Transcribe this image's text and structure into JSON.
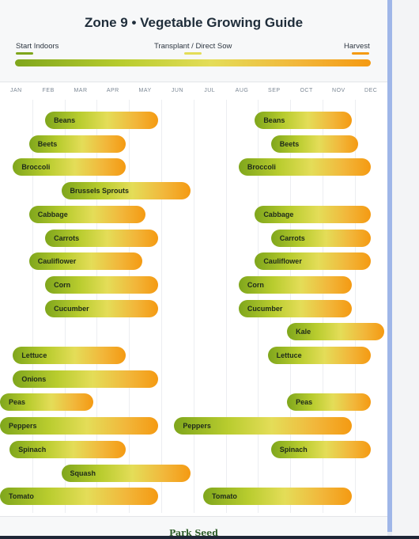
{
  "chart_data": {
    "type": "gantt",
    "title": "Zone 9 • Vegetable Growing Guide",
    "legend": [
      {
        "label": "Start Indoors",
        "color": "#7fa61c"
      },
      {
        "label": "Transplant / Direct Sow",
        "color": "#e4dd58"
      },
      {
        "label": "Harvest",
        "color": "#f49a12"
      }
    ],
    "months": [
      "JAN",
      "FEB",
      "MAR",
      "APR",
      "MAY",
      "JUN",
      "JUL",
      "AUG",
      "SEP",
      "OCT",
      "NOV",
      "DEC"
    ],
    "x_range_months": [
      0,
      12
    ],
    "series": [
      {
        "name": "Beans",
        "bars": [
          [
            1.4,
            4.9
          ],
          [
            7.9,
            10.9
          ]
        ]
      },
      {
        "name": "Beets",
        "bars": [
          [
            0.9,
            3.9
          ],
          [
            8.4,
            11.1
          ]
        ]
      },
      {
        "name": "Broccoli",
        "bars": [
          [
            0.4,
            3.9
          ],
          [
            7.4,
            11.5
          ]
        ]
      },
      {
        "name": "Brussels Sprouts",
        "bars": [
          [
            1.9,
            5.9
          ]
        ]
      },
      {
        "name": "Cabbage",
        "bars": [
          [
            0.9,
            4.5
          ],
          [
            7.9,
            11.5
          ]
        ]
      },
      {
        "name": "Carrots",
        "bars": [
          [
            1.4,
            4.9
          ],
          [
            8.4,
            11.5
          ]
        ]
      },
      {
        "name": "Cauliflower",
        "bars": [
          [
            0.9,
            4.4
          ],
          [
            7.9,
            11.5
          ]
        ]
      },
      {
        "name": "Corn",
        "bars": [
          [
            1.4,
            4.9
          ],
          [
            7.4,
            10.9
          ]
        ]
      },
      {
        "name": "Cucumber",
        "bars": [
          [
            1.4,
            4.9
          ],
          [
            7.4,
            10.9
          ]
        ]
      },
      {
        "name": "Kale",
        "bars": [
          [
            8.9,
            11.9
          ]
        ]
      },
      {
        "name": "Lettuce",
        "bars": [
          [
            0.4,
            3.9
          ],
          [
            8.3,
            11.5
          ]
        ]
      },
      {
        "name": "Onions",
        "bars": [
          [
            0.4,
            4.9
          ]
        ]
      },
      {
        "name": "Peas",
        "bars": [
          [
            0.0,
            2.9
          ],
          [
            8.9,
            11.5
          ]
        ]
      },
      {
        "name": "Peppers",
        "bars": [
          [
            0.0,
            4.9
          ],
          [
            5.4,
            10.9
          ]
        ]
      },
      {
        "name": "Spinach",
        "bars": [
          [
            0.3,
            3.9
          ],
          [
            8.4,
            11.5
          ]
        ]
      },
      {
        "name": "Squash",
        "bars": [
          [
            1.9,
            5.9
          ]
        ]
      },
      {
        "name": "Tomato",
        "bars": [
          [
            0.0,
            4.9
          ],
          [
            6.3,
            10.9
          ]
        ]
      }
    ]
  },
  "footer": {
    "logo_text": "Park Seed"
  }
}
